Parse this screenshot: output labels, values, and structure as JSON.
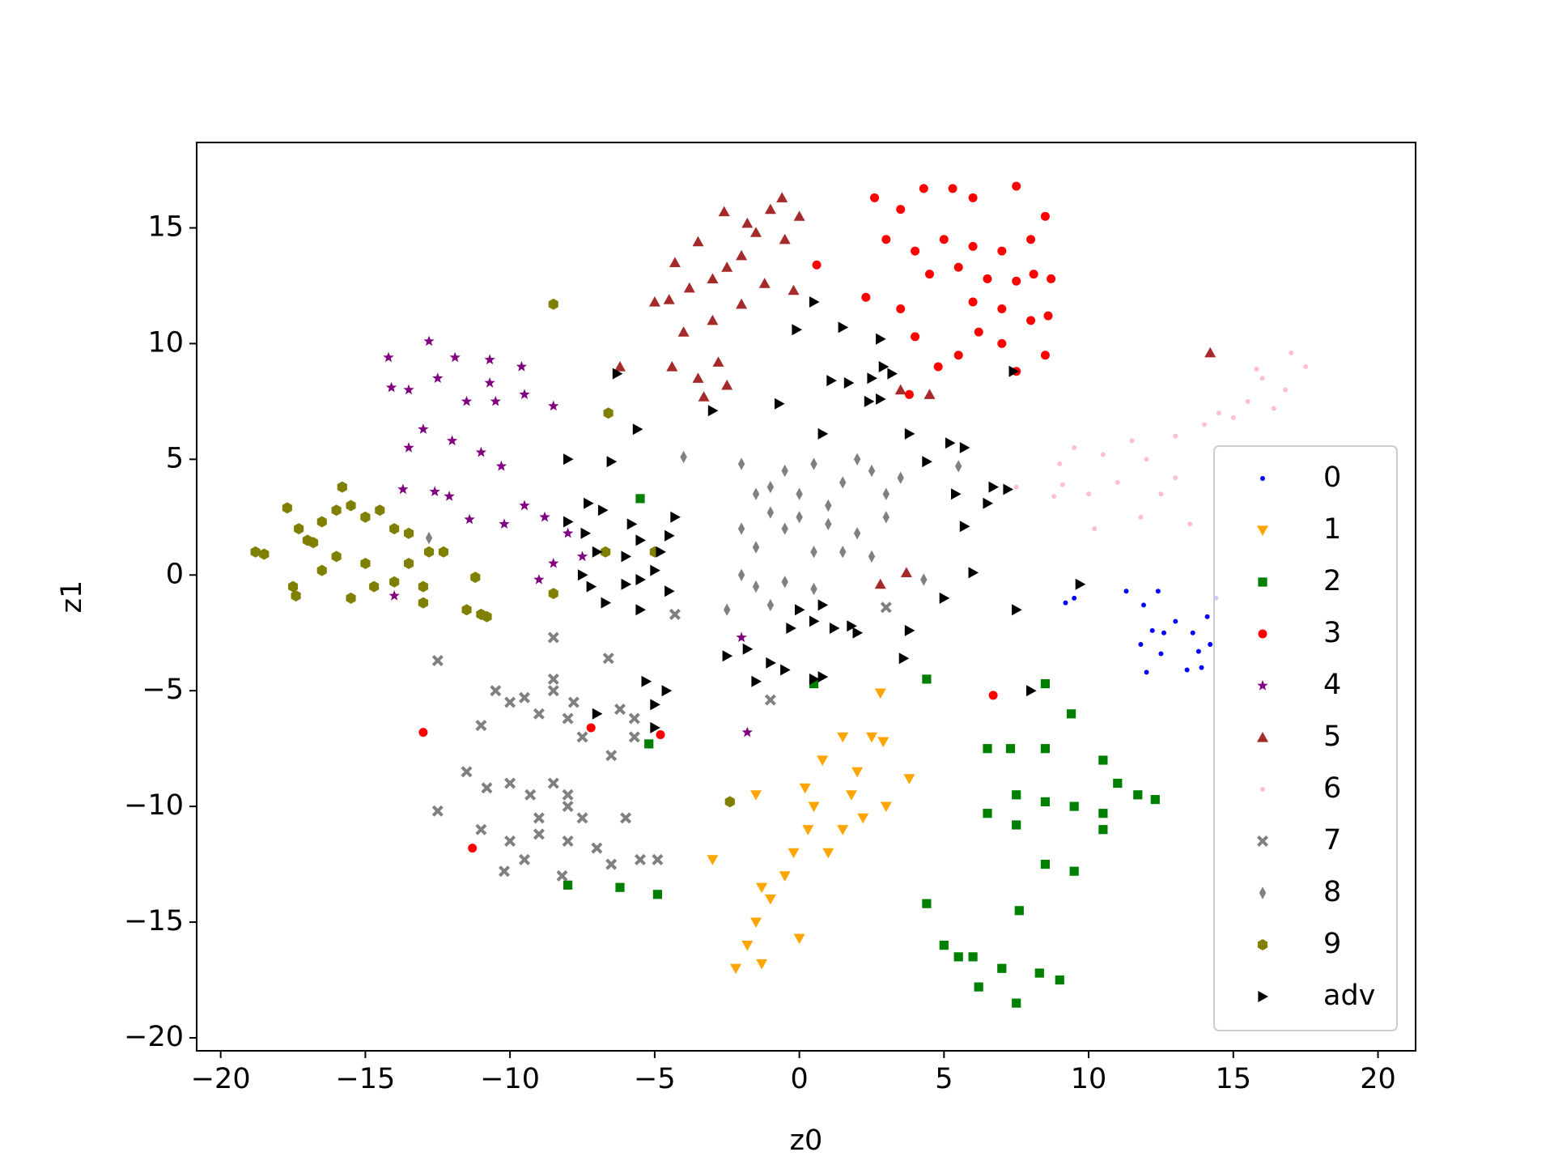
{
  "chart_data": {
    "type": "scatter",
    "xlabel": "z0",
    "ylabel": "z1",
    "xlim": [
      -20.83,
      21.3
    ],
    "ylim": [
      -20.56,
      18.69
    ],
    "xticks": [
      {
        "value": -20,
        "label": "−20"
      },
      {
        "value": -15,
        "label": "−15"
      },
      {
        "value": -10,
        "label": "−10"
      },
      {
        "value": -5,
        "label": "−5"
      },
      0,
      5,
      10,
      15,
      20
    ],
    "yticks": [
      {
        "value": -20,
        "label": "−20"
      },
      {
        "value": -15,
        "label": "−15"
      },
      {
        "value": -10,
        "label": "−10"
      },
      {
        "value": -5,
        "label": "−5"
      },
      0,
      5,
      10,
      15
    ],
    "legend": "lower right",
    "series": [
      {
        "name": "0",
        "color": "#0000ff",
        "marker": ".",
        "x": [
          11.3,
          11.9,
          12.4,
          12.2,
          11.8,
          12.5,
          12.0,
          13.0,
          13.6,
          13.8,
          13.9,
          14.1,
          14.2,
          13.4,
          9.2,
          9.5,
          14.4,
          12.6
        ],
        "values": [
          -0.7,
          -1.3,
          -0.7,
          -2.4,
          -3.0,
          -3.4,
          -4.2,
          -2.0,
          -2.5,
          -3.3,
          -4.0,
          -1.8,
          -3.0,
          -4.1,
          -1.2,
          -1.0,
          -1.0,
          -2.5
        ]
      },
      {
        "name": "1",
        "color": "#ffa500",
        "marker": "v",
        "x": [
          -2.2,
          -1.8,
          -1.3,
          -1.5,
          -1,
          -0.5,
          -1.3,
          0,
          -0.2,
          0.3,
          0.5,
          1.0,
          1.5,
          0.8,
          1.5,
          2.0,
          2.5,
          1.8,
          2.2,
          3.0,
          2.8,
          3.8,
          -3.0,
          -1.5,
          2.9,
          0.2
        ],
        "values": [
          -17,
          -16,
          -16.8,
          -15,
          -14,
          -13,
          -13.5,
          -15.7,
          -12,
          -11,
          -10,
          -12,
          -11,
          -8,
          -7,
          -8.5,
          -7,
          -9.5,
          -10.5,
          -10,
          -5.1,
          -8.8,
          -12.3,
          -9.5,
          -7.2,
          -9.2
        ]
      },
      {
        "name": "2",
        "color": "#008000",
        "marker": "s",
        "x": [
          6.5,
          7.3,
          8.5,
          9.4,
          7.5,
          8.5,
          9.5,
          10.5,
          11,
          11.7,
          12.3,
          10.5,
          9.5,
          8.5,
          6.5,
          7.5,
          4.4,
          5,
          6,
          7,
          7.5,
          8.3,
          9,
          7.6,
          6.2,
          5.5,
          -8,
          -6.2,
          -4.9,
          -5.2,
          4.4,
          0.5,
          8.5,
          -5.5,
          10.5
        ],
        "values": [
          -7.5,
          -7.5,
          -7.5,
          -6,
          -9.5,
          -9.8,
          -10,
          -8,
          -9,
          -9.5,
          -9.7,
          -11,
          -12.8,
          -12.5,
          -10.3,
          -10.8,
          -14.2,
          -16,
          -16.5,
          -17,
          -18.5,
          -17.2,
          -17.5,
          -14.5,
          -17.8,
          -16.5,
          -13.4,
          -13.5,
          -13.8,
          -7.3,
          -4.5,
          -4.7,
          -4.7,
          3.3,
          -10.3
        ]
      },
      {
        "name": "3",
        "color": "#ff0000",
        "marker": "o",
        "x": [
          2.6,
          3.5,
          4.3,
          5.3,
          6,
          7.5,
          8.5,
          3,
          4,
          5,
          6,
          7,
          8,
          4.5,
          5.5,
          6.5,
          7.5,
          8.1,
          8.7,
          2.3,
          3.5,
          6,
          7,
          8,
          8.6,
          6.2,
          5.5,
          7,
          7.5,
          8.5,
          3.8,
          4.8,
          4,
          0.6,
          -13,
          -11.3,
          -7.2,
          -4.8,
          6.7
        ],
        "values": [
          16.3,
          15.8,
          16.7,
          16.7,
          16.3,
          16.8,
          15.5,
          14.5,
          14,
          14.5,
          14.2,
          14,
          14.5,
          13,
          13.3,
          12.8,
          12.7,
          13,
          12.8,
          12,
          11.5,
          11.8,
          11.5,
          11,
          11.2,
          10.5,
          9.5,
          10,
          8.8,
          9.5,
          7.8,
          9,
          10.3,
          13.4,
          -6.8,
          -11.8,
          -6.6,
          -6.9,
          -5.2
        ]
      },
      {
        "name": "4",
        "color": "#800080",
        "marker": "*",
        "x": [
          -14.2,
          -12.8,
          -11.9,
          -10.7,
          -9.6,
          -13.5,
          -12.5,
          -11.5,
          -10.5,
          -9.5,
          -8.5,
          -13.5,
          -13,
          -12,
          -11,
          -10.3,
          -13.7,
          -12.6,
          -14.1,
          -11.4,
          -10.2,
          -9.5,
          -8.8,
          -8,
          -8.5,
          -9,
          -7.5,
          -2,
          -1.8,
          -14,
          -10.7,
          -12.1
        ],
        "values": [
          9.4,
          10.1,
          9.4,
          9.3,
          9,
          8,
          8.5,
          7.5,
          7.5,
          7.8,
          7.3,
          5.5,
          6.3,
          5.8,
          5.3,
          4.7,
          3.7,
          3.6,
          8.1,
          2.4,
          2.2,
          3,
          2.5,
          1.8,
          0.5,
          -0.2,
          0.8,
          -2.7,
          -6.8,
          -0.9,
          8.3,
          3.4
        ]
      },
      {
        "name": "5",
        "color": "#a52a2a",
        "marker": "^",
        "x": [
          -5,
          -4.5,
          -4.3,
          -3.5,
          -3,
          -2.5,
          -2,
          -1.5,
          -1,
          -0.5,
          0,
          -0.6,
          -2.6,
          -1.8,
          -3.8,
          -1.2,
          -0.2,
          -4,
          -3,
          -2,
          -3.5,
          -2.5,
          -3.3,
          -4.4,
          -2.8,
          -6.2,
          3.5,
          4.5,
          14.2,
          2.8,
          3.7
        ],
        "values": [
          11.8,
          11.9,
          13.5,
          14.4,
          12.8,
          13.3,
          13.8,
          14.8,
          15.8,
          14.5,
          15.5,
          16.3,
          15.7,
          15.2,
          12.4,
          12.6,
          12.3,
          10.5,
          11,
          11.7,
          8.5,
          8.2,
          7.7,
          9,
          9.2,
          9,
          8,
          7.8,
          9.6,
          -0.4,
          0.1
        ]
      },
      {
        "name": "6",
        "color": "#ffc0cb",
        "marker": ".",
        "x": [
          9,
          9.5,
          10.5,
          11.5,
          12,
          13,
          14,
          14.5,
          15.5,
          16,
          16.8,
          17.5,
          17,
          15,
          10,
          11,
          12.5,
          13,
          10.2,
          11.8,
          13.5,
          9.1,
          8.8,
          7.5,
          15.8,
          16.4
        ],
        "values": [
          4.8,
          5.5,
          5.2,
          5.8,
          5,
          6,
          6.5,
          7,
          7.5,
          8.5,
          8,
          9,
          9.6,
          6.8,
          3.5,
          4,
          3.5,
          4.2,
          2,
          2.5,
          2.2,
          3.9,
          3.4,
          3.8,
          8.9,
          7.2
        ]
      },
      {
        "name": "7",
        "color": "#808080",
        "marker": "X",
        "x": [
          -10,
          -10.5,
          -9.5,
          -8.5,
          -7.8,
          -11,
          -9,
          -8,
          -7.5,
          -6.5,
          -5.7,
          -11.5,
          -10.8,
          -10,
          -9.3,
          -8.5,
          -8,
          -9,
          -8,
          -7.5,
          -12.5,
          -11,
          -10,
          -9,
          -8,
          -7,
          -6.5,
          -5.5,
          -4.9,
          -10.2,
          -8.2,
          -9.5,
          -12.5,
          -8.5,
          -6.6,
          -6.2,
          -5.7,
          -6,
          -8.5,
          -4.3,
          3,
          -1
        ],
        "values": [
          -5.5,
          -5,
          -5.3,
          -5,
          -5.5,
          -6.5,
          -6,
          -6.2,
          -7,
          -7.8,
          -7,
          -8.5,
          -9.2,
          -9,
          -9.5,
          -9,
          -9.5,
          -10.5,
          -10,
          -10.5,
          -10.2,
          -11,
          -11.5,
          -11.2,
          -11.5,
          -11.8,
          -12.5,
          -12.3,
          -12.3,
          -12.8,
          -13,
          -12.3,
          -3.7,
          -4.5,
          -3.6,
          -5.8,
          -6.2,
          -10.5,
          -2.7,
          -1.7,
          -1.4,
          -5.4
        ]
      },
      {
        "name": "8",
        "color": "#808080",
        "marker": "d",
        "x": [
          -2,
          -1.5,
          -1,
          -0.5,
          0,
          0.5,
          1,
          1.5,
          2,
          2.5,
          3,
          3.5,
          -2,
          -1.5,
          -1,
          -0.5,
          0,
          0.5,
          1,
          1.5,
          2,
          3,
          -2,
          -1.5,
          -0.5,
          0.5,
          -2.5,
          -4,
          -12.8,
          5.5,
          2.5,
          4.3,
          -1
        ],
        "values": [
          4.8,
          3.5,
          3.8,
          4.5,
          3.5,
          4.8,
          3,
          4,
          5,
          4.5,
          3.5,
          4.2,
          2,
          1.2,
          2.7,
          2,
          2.5,
          1,
          2.2,
          1,
          1.8,
          2.5,
          0,
          -0.5,
          -0.3,
          -0.6,
          -1.5,
          5.1,
          1.6,
          4.7,
          0.8,
          -0.2,
          -1.3
        ]
      },
      {
        "name": "9",
        "color": "#808000",
        "marker": "h",
        "x": [
          -18.8,
          -18.5,
          -17.7,
          -17.3,
          -17,
          -16.5,
          -16,
          -15.8,
          -15.5,
          -15,
          -14.5,
          -14,
          -13.5,
          -17.5,
          -17.4,
          -16.5,
          -16,
          -15.5,
          -15,
          -14.7,
          -14,
          -13.5,
          -13,
          -12.8,
          -12.3,
          -11.5,
          -11,
          -10.8,
          -11.2,
          -8.5,
          -8.5,
          -6.7,
          -5,
          -2.4,
          -6.6,
          -13,
          -16.8
        ],
        "values": [
          1,
          0.9,
          2.9,
          2,
          1.5,
          2.3,
          2.8,
          3.8,
          3,
          2.5,
          2.8,
          2,
          1.8,
          -0.5,
          -0.9,
          0.2,
          0.8,
          -1,
          0.5,
          -0.5,
          -0.3,
          0.5,
          -0.5,
          1.0,
          1,
          -1.5,
          -1.7,
          -1.8,
          -0.1,
          11.7,
          -0.8,
          1,
          1,
          -9.8,
          7,
          -1.2,
          1.4
        ]
      },
      {
        "name": "adv",
        "color": "#000000",
        "marker": ">",
        "x": [
          0.5,
          -0.1,
          1.5,
          2.8,
          -6.3,
          1.1,
          1.7,
          2.9,
          3.2,
          -3,
          -0.7,
          2.4,
          2.8,
          -5.6,
          0.8,
          3.8,
          5.2,
          5.7,
          -8,
          -6.5,
          4.4,
          6.7,
          7.2,
          -7.3,
          -6.8,
          -5.8,
          -4.3,
          5.4,
          6.5,
          -8,
          -7.4,
          -5.5,
          -4.5,
          5.7,
          -7,
          -6,
          -4.8,
          -5,
          -7.5,
          -6,
          -5.5,
          -4.5,
          6,
          -7.2,
          -6.7,
          -5.5,
          0,
          0.5,
          0.8,
          -0.3,
          1.2,
          1.8,
          2,
          3.8,
          5,
          7.5,
          9.7,
          -2.5,
          -1.8,
          -1,
          -0.5,
          0.5,
          -5.3,
          -4.6,
          -5,
          -7,
          -5,
          3.6,
          -1.5,
          0.8,
          8,
          7.4,
          2.5
        ],
        "values": [
          11.8,
          10.6,
          10.7,
          10.2,
          8.7,
          8.4,
          8.3,
          9,
          8.7,
          7.1,
          7.4,
          7.5,
          7.6,
          6.3,
          6.1,
          6.1,
          5.7,
          5.5,
          5,
          4.9,
          4.9,
          3.8,
          3.7,
          3.1,
          2.8,
          2.2,
          2.5,
          3.5,
          3.1,
          2.3,
          1.8,
          1.5,
          1.7,
          2.1,
          1,
          0.8,
          1,
          0.2,
          0,
          -0.4,
          -0.2,
          -0.7,
          0.1,
          -0.5,
          -1.2,
          -1.5,
          -1.5,
          -2,
          -1.3,
          -2.3,
          -2.3,
          -2.2,
          -2.5,
          -2.4,
          -1,
          -1.5,
          -0.4,
          -3.5,
          -3.2,
          -3.8,
          -4.1,
          -4.5,
          -4.6,
          -5,
          -5.6,
          -6,
          -6.6,
          -3.6,
          -4.6,
          -4.4,
          -5,
          8.8,
          8.5
        ]
      }
    ]
  }
}
